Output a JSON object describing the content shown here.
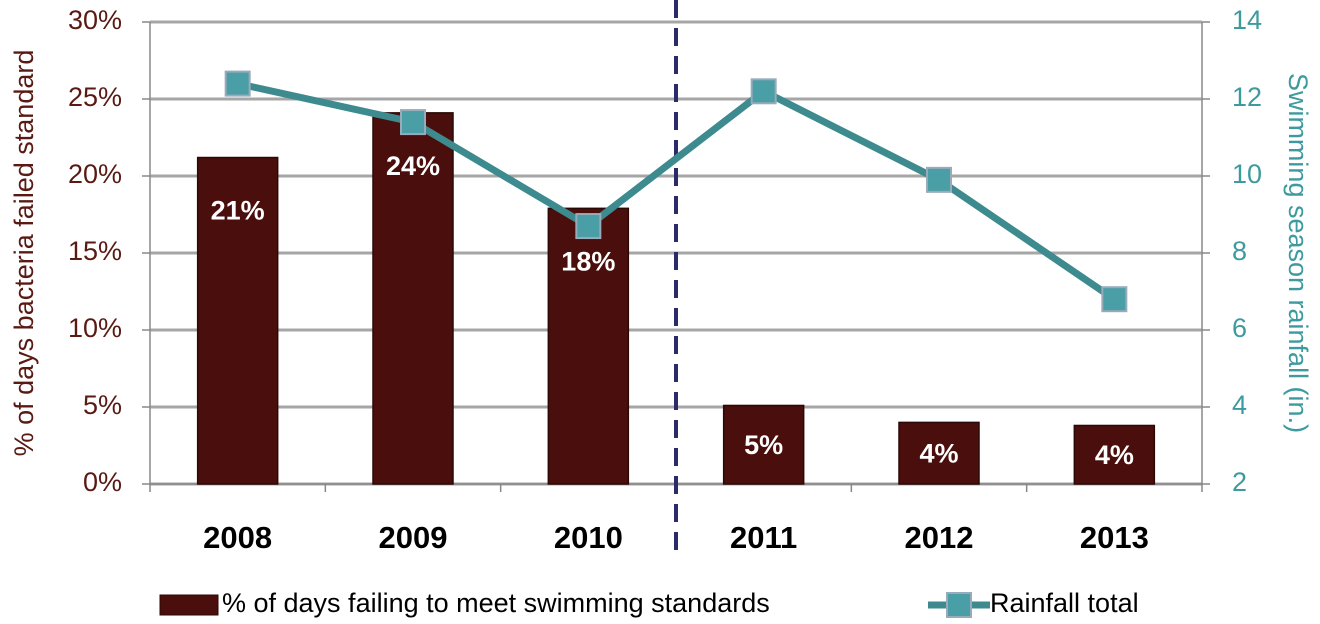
{
  "chart_data": {
    "type": "bar",
    "categories": [
      "2008",
      "2009",
      "2010",
      "2011",
      "2012",
      "2013"
    ],
    "y_label": "% of days bacteria failed standard",
    "y2_label": "Swimming season rainfall (in.)",
    "ylim": [
      0,
      30
    ],
    "yticks": [
      {
        "value": 0,
        "label": "0%"
      },
      {
        "value": 5,
        "label": "5%"
      },
      {
        "value": 10,
        "label": "10%"
      },
      {
        "value": 15,
        "label": "15%"
      },
      {
        "value": 20,
        "label": "20%"
      },
      {
        "value": 25,
        "label": "25%"
      },
      {
        "value": 30,
        "label": "30%"
      }
    ],
    "y2lim": [
      2,
      14
    ],
    "y2ticks": [
      2,
      4,
      6,
      8,
      10,
      12,
      14
    ],
    "grid": true,
    "legend": "bottom",
    "series": [
      {
        "name": "% of days failing to meet swimming standards",
        "type": "bar",
        "color": "#4a0f0c",
        "values": [
          21.2,
          24.1,
          17.9,
          5.1,
          4.0,
          3.8
        ],
        "value_labels": [
          "21%",
          "24%",
          "18%",
          "5%",
          "4%",
          "4%"
        ]
      },
      {
        "name": "Rainfall total",
        "type": "line",
        "axis": "y2",
        "color": "#3d8a8f",
        "values": [
          12.4,
          11.4,
          8.7,
          12.2,
          9.9,
          6.8
        ]
      }
    ]
  }
}
